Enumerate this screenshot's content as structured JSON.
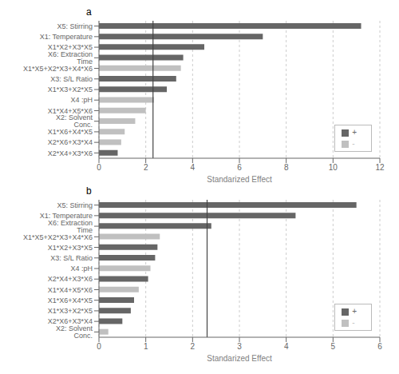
{
  "chart_data": [
    {
      "type": "bar",
      "title": "a",
      "xlabel": "Standarized Effect",
      "orientation": "horizontal",
      "stacked": true,
      "grid": true,
      "legend": "lower right",
      "categories": [
        "X5: Stirring",
        "X1: Temperature",
        "X1*X2+X3*X5",
        "X6: Extraction Time",
        "X1*X5+X2*X3+X4*X6",
        "X3: S/L Ratio",
        "X1*X3+X2*X5",
        "X4 :pH",
        "X1*X4+X5*X6",
        "X2: Solvent Conc.",
        "X1*X6+X4*X5",
        "X2*X6+X3*X4",
        "X2*X4+X3*X6"
      ],
      "series": [
        {
          "name": "+",
          "color": "#666666",
          "values": [
            11.2,
            7.0,
            4.5,
            3.6,
            null,
            3.3,
            2.9,
            null,
            null,
            null,
            null,
            null,
            0.8
          ]
        },
        {
          "name": "-",
          "color": "#c0c0c0",
          "values": [
            null,
            null,
            null,
            null,
            3.5,
            null,
            null,
            2.35,
            2.0,
            1.55,
            1.1,
            0.95,
            null
          ]
        }
      ],
      "reference_line": 2.31,
      "xlim": [
        0,
        12
      ],
      "xticks": [
        0,
        2,
        4,
        6,
        8,
        10,
        12
      ]
    },
    {
      "type": "bar",
      "title": "b",
      "xlabel": "Standarized Effect",
      "orientation": "horizontal",
      "stacked": true,
      "grid": true,
      "legend": "lower right",
      "categories": [
        "X5: Stirring",
        "X1: Temperature",
        "X6: Extraction Time",
        "X1*X5+X2*X3+X4*X6",
        "X1*X2+X3*X5",
        "X3: S/L Ratio",
        "X4 :pH",
        "X2*X4+X3*X6",
        "X1*X4+X5*X6",
        "X1*X6+X4*X5",
        "X1*X3+X2*X5",
        "X2*X6+X3*X4",
        "X2: Solvent Conc."
      ],
      "series": [
        {
          "name": "+",
          "color": "#666666",
          "values": [
            5.5,
            4.2,
            2.4,
            null,
            1.25,
            1.2,
            null,
            1.05,
            null,
            0.75,
            0.68,
            0.5,
            null
          ]
        },
        {
          "name": "-",
          "color": "#c0c0c0",
          "values": [
            null,
            null,
            null,
            1.3,
            null,
            null,
            1.1,
            null,
            0.85,
            null,
            null,
            null,
            0.2
          ]
        }
      ],
      "reference_line": 2.31,
      "xlim": [
        0,
        6
      ],
      "xticks": [
        0,
        1,
        2,
        3,
        4,
        5,
        6
      ]
    }
  ]
}
